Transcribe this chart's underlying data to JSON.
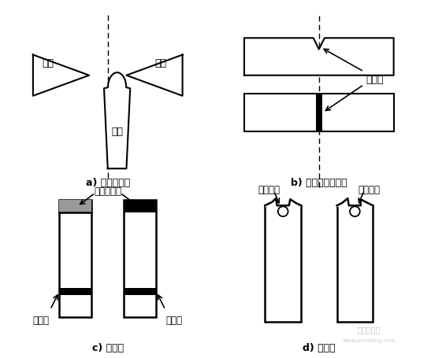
{
  "background_color": "#ffffff",
  "label_a": "a) 摆锤不对中",
  "label_b": "b) 摆锤打击点位置",
  "label_c": "c) 前视图",
  "label_d": "d) 侧视图",
  "text_zhenzuo": "砧座",
  "text_baitui": "摆锤",
  "text_dajidian": "打击点",
  "text_bupingtan": "不平坦断口",
  "text_jiyayan": "挤压痕",
  "text_chongji": "冲击缺口"
}
